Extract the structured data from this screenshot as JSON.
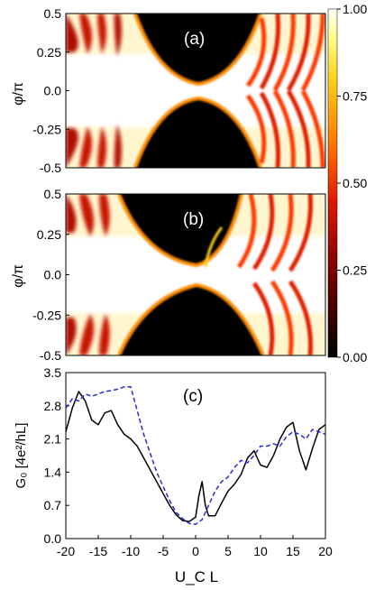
{
  "chart_data": [
    {
      "panel_label": "(a)",
      "type": "heatmap",
      "ylabel": "φ/π",
      "ylim": [
        -0.5,
        0.5
      ],
      "yticks": [
        "-0.5",
        "-0.25",
        "0.0",
        "0.25",
        "0.5"
      ],
      "xlim": [
        -20,
        20
      ],
      "colormap": "black-red-orange-yellow-white",
      "colorbar": {
        "min": 0.0,
        "max": 1.0,
        "ticks": [
          "0.00",
          "0.25",
          "0.50",
          "0.75",
          "1.00"
        ]
      }
    },
    {
      "panel_label": "(b)",
      "type": "heatmap",
      "ylabel": "φ/π",
      "ylim": [
        -0.5,
        0.5
      ],
      "yticks": [
        "-0.5",
        "-0.25",
        "0.0",
        "0.25",
        "0.5"
      ],
      "xlim": [
        -20,
        20
      ],
      "colormap": "black-red-orange-yellow-white"
    },
    {
      "panel_label": "(c)",
      "type": "line",
      "ylabel": "G₀ [4e²/hL]",
      "xlabel": "U_C L",
      "xlim": [
        -20,
        20
      ],
      "ylim": [
        0.0,
        3.5
      ],
      "xticks": [
        "-20",
        "-15",
        "-10",
        "-5",
        "0",
        "5",
        "10",
        "15",
        "20"
      ],
      "yticks": [
        "0.0",
        "0.7",
        "1.4",
        "2.1",
        "2.8",
        "3.5"
      ],
      "series": [
        {
          "style": "solid",
          "color": "#000000",
          "x": [
            -20,
            -19,
            -18,
            -17,
            -16,
            -15,
            -14,
            -13,
            -12,
            -11,
            -10,
            -9,
            -8,
            -7,
            -6,
            -5,
            -4,
            -3,
            -2,
            -1,
            0,
            0.5,
            1,
            1.5,
            2,
            3,
            4,
            5,
            6,
            7,
            8,
            9,
            10,
            11,
            12,
            13,
            14,
            15,
            16,
            17,
            18,
            19,
            20
          ],
          "y": [
            2.25,
            2.75,
            3.1,
            2.9,
            2.5,
            2.4,
            2.65,
            2.7,
            2.4,
            2.2,
            2.1,
            1.95,
            1.7,
            1.45,
            1.2,
            0.95,
            0.7,
            0.5,
            0.38,
            0.36,
            0.45,
            0.9,
            1.2,
            0.7,
            0.48,
            0.48,
            0.75,
            1.0,
            1.15,
            1.35,
            1.7,
            1.85,
            1.55,
            1.5,
            1.75,
            2.1,
            2.35,
            2.45,
            1.85,
            1.45,
            1.9,
            2.3,
            2.4
          ]
        },
        {
          "style": "dashed",
          "color": "#2a2ad6",
          "x": [
            -20,
            -19,
            -18,
            -17,
            -16,
            -15,
            -14,
            -13,
            -12,
            -11,
            -10,
            -9,
            -8,
            -7,
            -6,
            -5,
            -4,
            -3,
            -2,
            -1,
            0,
            1,
            2,
            3,
            4,
            5,
            6,
            7,
            8,
            9,
            10,
            11,
            12,
            13,
            14,
            15,
            16,
            17,
            18,
            19,
            20
          ],
          "y": [
            2.75,
            2.95,
            2.9,
            3.05,
            3.0,
            3.05,
            3.1,
            3.12,
            3.15,
            3.2,
            3.2,
            2.7,
            2.2,
            1.8,
            1.4,
            1.1,
            0.8,
            0.55,
            0.42,
            0.32,
            0.3,
            0.4,
            0.7,
            1.0,
            1.2,
            1.3,
            1.5,
            1.65,
            1.6,
            1.75,
            1.95,
            1.95,
            2.0,
            1.95,
            2.15,
            2.25,
            2.2,
            2.1,
            2.3,
            2.25,
            2.2
          ]
        }
      ]
    }
  ]
}
